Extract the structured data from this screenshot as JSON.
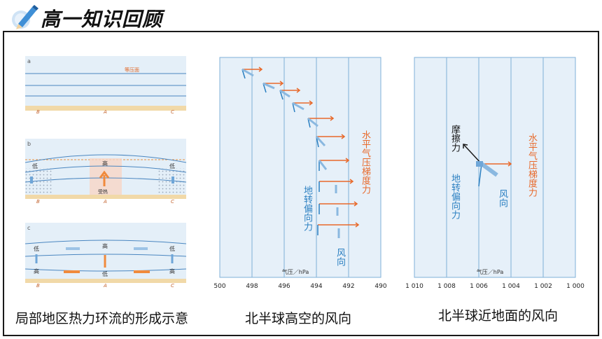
{
  "header": {
    "title": "高一知识回顾"
  },
  "captions": {
    "left": "局部地区热力环流的形成示意",
    "middle": "北半球高空的风向",
    "right": "北半球近地面的风向"
  },
  "thermal": {
    "panel_a": {
      "tag": "a",
      "isobar_label": "等压面",
      "ground": [
        "B",
        "A",
        "C"
      ]
    },
    "panel_b": {
      "tag": "b",
      "low_left": "低",
      "high_mid": "高",
      "low_right": "低",
      "heat_label": "受热",
      "ground": [
        "B",
        "A",
        "C"
      ]
    },
    "panel_c": {
      "tag": "c",
      "upper": [
        "低",
        "高",
        "低"
      ],
      "lower": [
        "高",
        "低",
        "高"
      ],
      "ground": [
        "B",
        "A",
        "C"
      ]
    }
  },
  "upper_wind": {
    "axis_ticks": [
      "500",
      "498",
      "496",
      "494",
      "492",
      "490"
    ],
    "axis_label": "气压／hPa",
    "pgf_label": "水平气压梯度力",
    "coriolis_label": "地转偏向力",
    "wind_label": "风向",
    "colors": {
      "pgf": "#e8692a",
      "coriolis": "#2a7fc1",
      "wind": "#8ab8e0",
      "grid": "#7fb0d8",
      "bg": "#e6f0f9"
    }
  },
  "surface_wind": {
    "axis_ticks": [
      "1 010",
      "1 008",
      "1 006",
      "1 004",
      "1 002",
      "1 000"
    ],
    "axis_label": "气压／hPa",
    "friction_label": "摩擦力",
    "coriolis_label": "地转偏向力",
    "pgf_label": "水平气压梯度力",
    "wind_label": "风向"
  }
}
